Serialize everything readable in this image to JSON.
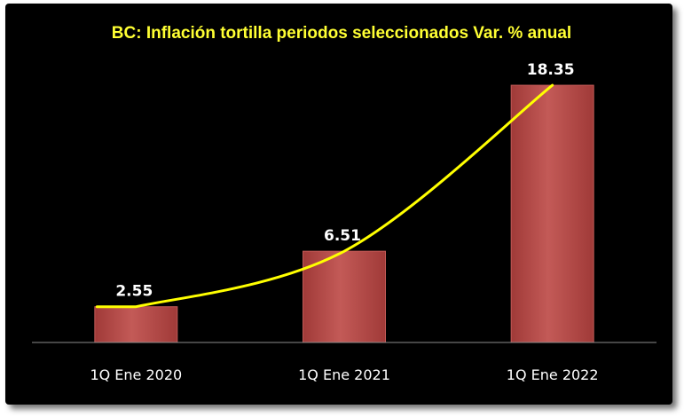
{
  "chart_data": {
    "type": "bar",
    "title": "BC: Inflación tortilla periodos seleccionados Var. % anual",
    "categories": [
      "1Q Ene 2020",
      "1Q Ene 2021",
      "1Q Ene 2022"
    ],
    "values": [
      2.55,
      6.51,
      18.35
    ],
    "data_labels": [
      "2.55",
      "6.51",
      "18.35"
    ],
    "ylim": [
      0,
      20
    ],
    "grid": false,
    "legend": "none",
    "trendline": true,
    "colors": {
      "background": "#000000",
      "bar": "#a03a38",
      "bar_highlight": "#c35a57",
      "title": "#ffff33",
      "trendline": "#ffff00",
      "text": "#ffffff",
      "axis": "#8c8c8c"
    }
  }
}
